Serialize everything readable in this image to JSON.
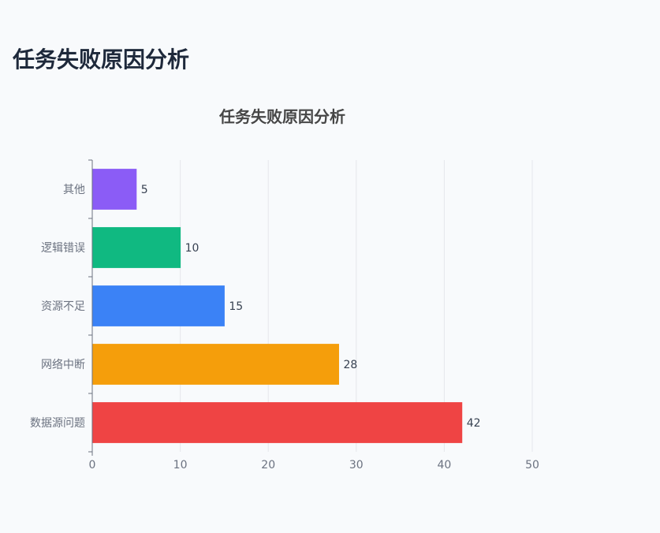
{
  "page": {
    "heading": "任务失败原因分析"
  },
  "chart_data": {
    "type": "bar",
    "orientation": "horizontal",
    "title": "任务失败原因分析",
    "categories": [
      "数据源问题",
      "网络中断",
      "资源不足",
      "逻辑错误",
      "其他"
    ],
    "values": [
      42,
      28,
      15,
      10,
      5
    ],
    "colors": [
      "#ef4444",
      "#f59e0b",
      "#3b82f6",
      "#10b981",
      "#8b5cf6"
    ],
    "xlim": [
      0,
      50
    ],
    "xticks": [
      0,
      10,
      20,
      30,
      40,
      50
    ],
    "grid": true,
    "data_labels": true
  }
}
